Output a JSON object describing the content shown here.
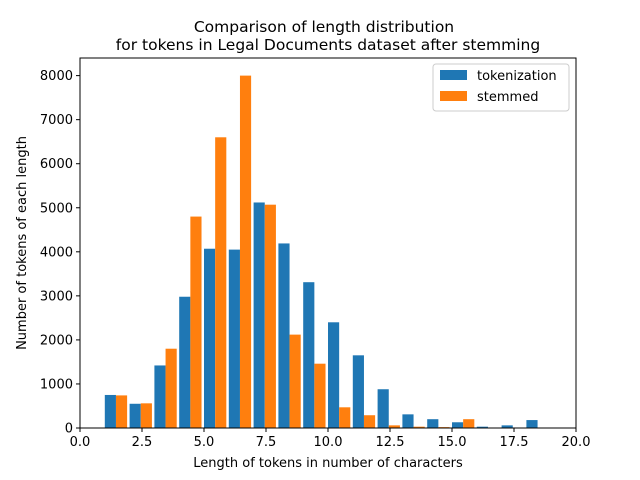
{
  "chart_data": {
    "type": "bar",
    "title_lines": [
      "Comparison of length distribution",
      "for tokens in Legal Documents dataset after stemming"
    ],
    "xlabel": "Length of tokens in number of characters",
    "ylabel": "Number of tokens of each length",
    "xlim": [
      0,
      20
    ],
    "ylim": [
      0,
      8400
    ],
    "x_ticks": [
      0,
      2.5,
      5,
      7.5,
      10,
      12.5,
      15,
      17.5,
      20
    ],
    "x_tick_labels": [
      "0.0",
      "2.5",
      "5.0",
      "7.5",
      "10.0",
      "12.5",
      "15.0",
      "17.5",
      "20.0"
    ],
    "y_ticks": [
      0,
      1000,
      2000,
      3000,
      4000,
      5000,
      6000,
      7000,
      8000
    ],
    "y_tick_labels": [
      "0",
      "1000",
      "2000",
      "3000",
      "4000",
      "5000",
      "6000",
      "7000",
      "8000"
    ],
    "x": [
      1,
      2,
      3,
      4,
      5,
      6,
      7,
      8,
      9,
      10,
      11,
      12,
      13,
      14,
      15,
      16,
      17,
      18
    ],
    "series": [
      {
        "name": "tokenization",
        "color": "#1f77b4",
        "values": [
          750,
          550,
          1420,
          2980,
          4070,
          4050,
          5120,
          4190,
          3310,
          2400,
          1650,
          880,
          310,
          200,
          130,
          30,
          60,
          180
        ]
      },
      {
        "name": "stemmed",
        "color": "#ff7f0e",
        "values": [
          740,
          560,
          1800,
          4800,
          6600,
          8000,
          5070,
          2120,
          1460,
          470,
          290,
          60,
          30,
          20,
          200,
          0,
          0,
          0
        ]
      }
    ],
    "legend_position": "top-right",
    "grid": false
  }
}
